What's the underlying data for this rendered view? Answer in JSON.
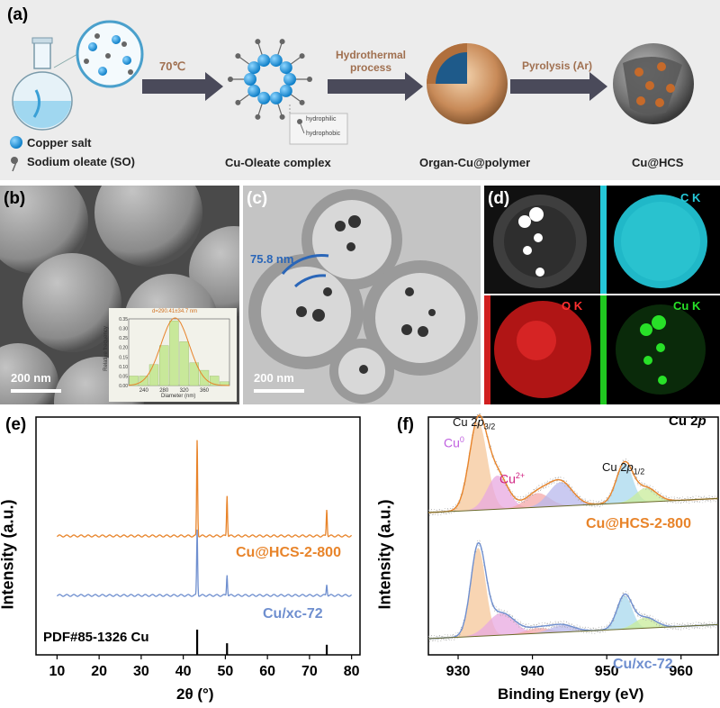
{
  "panel_a": {
    "label": "(a)",
    "temp": "70℃",
    "step2": "Hydrothermal process",
    "step3": "Pyrolysis (Ar)",
    "legend_salt": "Copper salt",
    "legend_so": "Sodium oleate (SO)",
    "hydrophilic": "hydrophilic",
    "hydrophobic": "hydrophobic",
    "cap1": "Cu-Oleate complex",
    "cap2": "Organ-Cu@polymer",
    "cap3": "Cu@HCS"
  },
  "panel_b": {
    "label": "(b)",
    "scale": "200 nm",
    "inset": {
      "annotation": "d=290.41±34.7 nm",
      "ylabel": "Relative frequency",
      "xlabel": "Diameter (nm)",
      "xticks": [
        "240",
        "280",
        "320",
        "360"
      ],
      "yticks": [
        "0.00",
        "0.05",
        "0.10",
        "0.15",
        "0.20",
        "0.25",
        "0.30",
        "0.35"
      ]
    }
  },
  "panel_c": {
    "label": "(c)",
    "scale": "200 nm",
    "thickness": "75.8 nm"
  },
  "panel_d": {
    "label": "(d)",
    "ck": "C  K",
    "ok": "O  K",
    "cuk": "Cu  K"
  },
  "panel_e": {
    "label": "(e)",
    "s1": "Cu@HCS-2-800",
    "s2": "Cu/xc-72",
    "ref": "PDF#85-1326 Cu"
  },
  "panel_f": {
    "label": "(f)",
    "title": "Cu 2p",
    "p32": "Cu 2p3/2",
    "p12": "Cu 2p1/2",
    "cu0": "Cu0",
    "cu2": "Cu2+",
    "s1": "Cu@HCS-2-800",
    "s2": "Cu/xc-72"
  },
  "chart_data": [
    {
      "type": "bar",
      "title": "",
      "annotation": "d=290.41±34.7 nm",
      "xlabel": "Diameter (nm)",
      "ylabel": "Relative frequency",
      "categories": [
        "230",
        "245",
        "260",
        "275",
        "290",
        "305",
        "320",
        "335",
        "350",
        "365"
      ],
      "values": [
        0.05,
        0.05,
        0.11,
        0.21,
        0.34,
        0.23,
        0.12,
        0.08,
        0.05,
        0.02
      ],
      "ylim": [
        0,
        0.35
      ],
      "colors": {
        "bar": "#c8e89a",
        "fit": "#e8832a"
      }
    },
    {
      "type": "line",
      "xlabel": "2θ (°)",
      "ylabel": "Intensity (a.u.)",
      "xlim": [
        5,
        82
      ],
      "xticks": [
        10,
        20,
        30,
        40,
        50,
        60,
        70,
        80
      ],
      "series": [
        {
          "name": "Cu@HCS-2-800",
          "color": "#e8842a",
          "peaks": [
            [
              43.3,
              1.0
            ],
            [
              50.4,
              0.42
            ],
            [
              74.1,
              0.28
            ]
          ]
        },
        {
          "name": "Cu/xc-72",
          "color": "#6f8fcf",
          "peaks": [
            [
              43.3,
              0.7
            ],
            [
              50.4,
              0.22
            ],
            [
              74.1,
              0.12
            ]
          ]
        }
      ],
      "reference": {
        "name": "PDF#85-1326 Cu",
        "positions": [
          43.3,
          50.4,
          74.1
        ],
        "heights": [
          1.0,
          0.46,
          0.4
        ]
      }
    },
    {
      "type": "line",
      "title": "Cu 2p",
      "xlabel": "Binding Energy (eV)",
      "ylabel": "Intensity (a.u.)",
      "xlim": [
        926,
        965
      ],
      "xticks": [
        930,
        940,
        950,
        960
      ],
      "series": [
        {
          "name": "Cu@HCS-2-800",
          "color": "#e8842a",
          "components": [
            {
              "center": 932.7,
              "height": 1.0,
              "width": 1.2,
              "color": "#f5c79a"
            },
            {
              "center": 935.3,
              "height": 0.38,
              "width": 1.4,
              "color": "#e8a8e0"
            },
            {
              "center": 940.7,
              "height": 0.16,
              "width": 1.6,
              "color": "#f4a8a8"
            },
            {
              "center": 943.8,
              "height": 0.27,
              "width": 1.6,
              "color": "#b8b8ec"
            },
            {
              "center": 952.4,
              "height": 0.45,
              "width": 1.1,
              "color": "#a8d8ee"
            },
            {
              "center": 955.3,
              "height": 0.16,
              "width": 1.4,
              "color": "#c8ec9a"
            }
          ]
        },
        {
          "name": "Cu/xc-72",
          "color": "#6f8fcf",
          "components": [
            {
              "center": 932.7,
              "height": 1.0,
              "width": 1.0,
              "color": "#f5c79a"
            },
            {
              "center": 935.8,
              "height": 0.25,
              "width": 1.8,
              "color": "#e8a8e0"
            },
            {
              "center": 940.8,
              "height": 0.06,
              "width": 1.6,
              "color": "#f4a8a8"
            },
            {
              "center": 944.0,
              "height": 0.08,
              "width": 1.6,
              "color": "#b8b8ec"
            },
            {
              "center": 952.4,
              "height": 0.38,
              "width": 1.0,
              "color": "#a8d8ee"
            },
            {
              "center": 955.2,
              "height": 0.12,
              "width": 1.4,
              "color": "#c8ec9a"
            }
          ]
        }
      ]
    }
  ]
}
